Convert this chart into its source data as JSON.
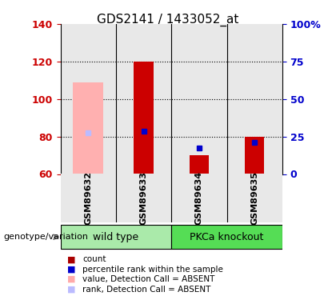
{
  "title": "GDS2141 / 1433052_at",
  "samples": [
    "GSM89632",
    "GSM89633",
    "GSM89634",
    "GSM89635"
  ],
  "ylim": [
    60,
    140
  ],
  "yticks_left": [
    60,
    80,
    100,
    120,
    140
  ],
  "yticks_right": [
    0,
    25,
    50,
    75,
    100
  ],
  "ylabel_left_color": "#cc0000",
  "ylabel_right_color": "#0000cc",
  "bar_bottom": 60,
  "red_bars": [
    null,
    120,
    70,
    80
  ],
  "blue_markers": [
    null,
    83,
    74,
    77
  ],
  "pink_bars": [
    109,
    null,
    null,
    null
  ],
  "lavender_markers": [
    82,
    null,
    null,
    null
  ],
  "legend_items": [
    {
      "color": "#aa0000",
      "label": "count"
    },
    {
      "color": "#0000cc",
      "label": "percentile rank within the sample"
    },
    {
      "color": "#ffaaaa",
      "label": "value, Detection Call = ABSENT"
    },
    {
      "color": "#bbbbff",
      "label": "rank, Detection Call = ABSENT"
    }
  ],
  "genotype_label": "genotype/variation",
  "plot_bg": "#e8e8e8",
  "bar_width": 0.35,
  "pink_bar_width": 0.55,
  "group1_color": "#aaeaaa",
  "group2_color": "#55dd55"
}
